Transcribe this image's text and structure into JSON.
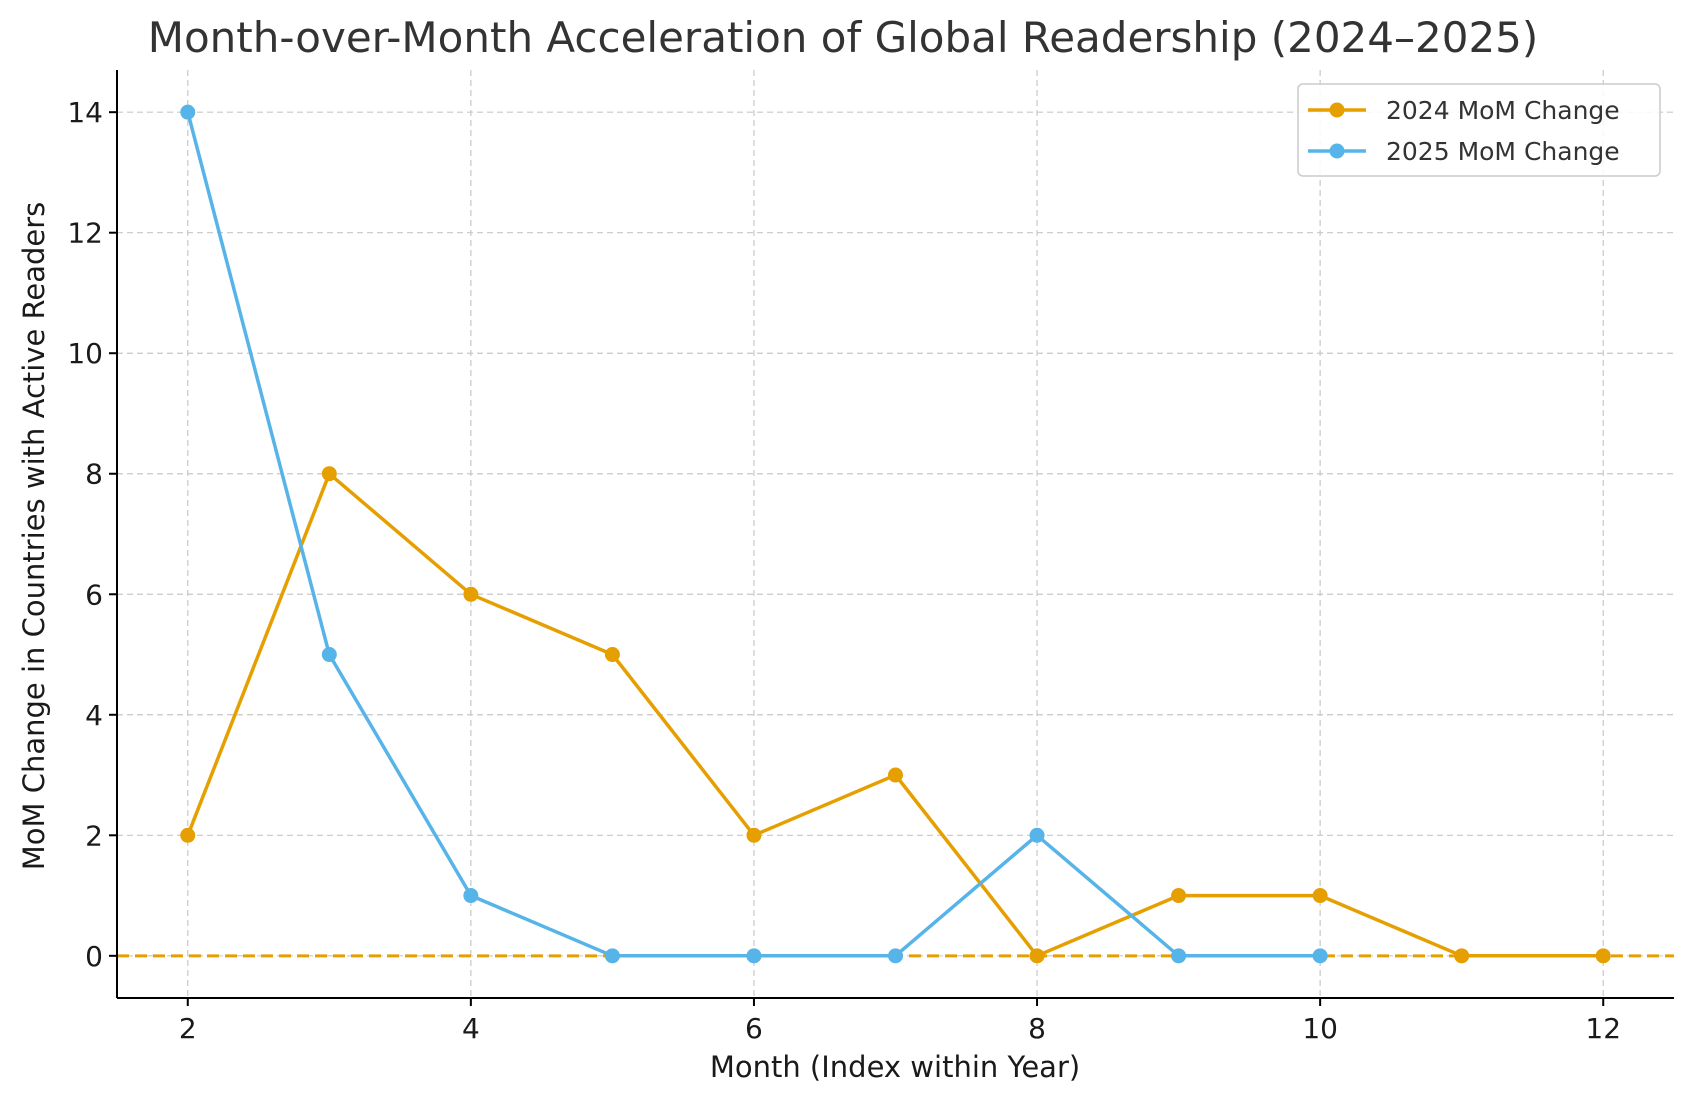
{
  "chart_data": {
    "type": "line",
    "title": "Month-over-Month Acceleration of Global Readership (2024–2025)",
    "xlabel": "Month (Index within Year)",
    "ylabel": "MoM Change in Countries with Active Readers",
    "xlim": [
      1.5,
      12.5
    ],
    "ylim": [
      -0.7,
      14.7
    ],
    "xticks": [
      2,
      4,
      6,
      8,
      10,
      12
    ],
    "yticks": [
      0,
      2,
      4,
      6,
      8,
      10,
      12,
      14
    ],
    "grid": true,
    "legend_position": "top-right",
    "reference_line": {
      "y": 0,
      "style": "dashed",
      "color": "#E69F00"
    },
    "series": [
      {
        "name": "2024 MoM Change",
        "color": "#E69F00",
        "x": [
          2,
          3,
          4,
          5,
          6,
          7,
          8,
          9,
          10,
          11,
          12
        ],
        "values": [
          2,
          8,
          6,
          5,
          2,
          3,
          0,
          1,
          1,
          0,
          0
        ]
      },
      {
        "name": "2025 MoM Change",
        "color": "#56B4E9",
        "x": [
          2,
          3,
          4,
          5,
          6,
          7,
          8,
          9,
          10
        ],
        "values": [
          14,
          5,
          1,
          0,
          0,
          0,
          2,
          0,
          0
        ]
      }
    ]
  }
}
